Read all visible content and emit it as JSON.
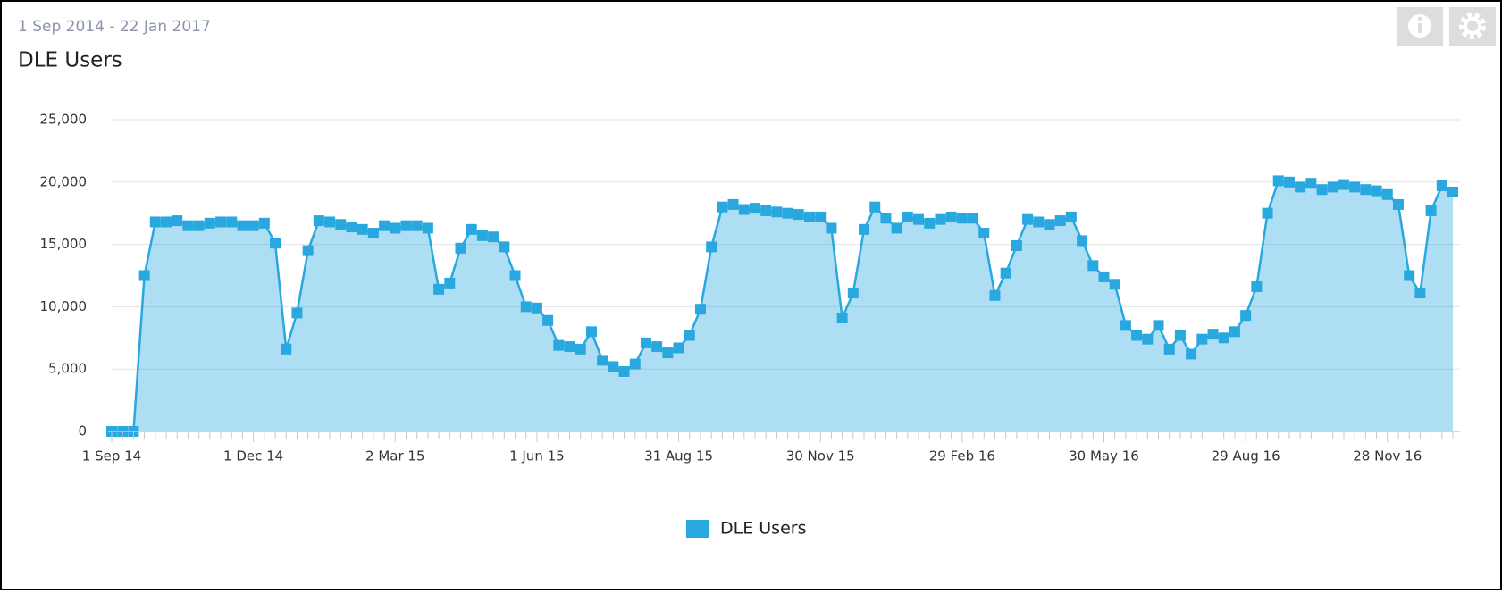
{
  "chart_data": {
    "type": "area",
    "date_range": "1 Sep 2014 - 22 Jan 2017",
    "title": "DLE Users",
    "categories": [
      "1 Sep 14",
      null,
      null,
      null,
      null,
      null,
      null,
      null,
      null,
      null,
      null,
      null,
      null,
      "1 Dec 14",
      null,
      null,
      null,
      null,
      null,
      null,
      null,
      null,
      null,
      null,
      null,
      null,
      "2 Mar 15",
      null,
      null,
      null,
      null,
      null,
      null,
      null,
      null,
      null,
      null,
      null,
      null,
      "1 Jun 15",
      null,
      null,
      null,
      null,
      null,
      null,
      null,
      null,
      null,
      null,
      null,
      null,
      "31 Aug 15",
      null,
      null,
      null,
      null,
      null,
      null,
      null,
      null,
      null,
      null,
      null,
      null,
      "30 Nov 15",
      null,
      null,
      null,
      null,
      null,
      null,
      null,
      null,
      null,
      null,
      null,
      null,
      "29 Feb 16",
      null,
      null,
      null,
      null,
      null,
      null,
      null,
      null,
      null,
      null,
      null,
      null,
      "30 May 16",
      null,
      null,
      null,
      null,
      null,
      null,
      null,
      null,
      null,
      null,
      null,
      null,
      "29 Aug 16",
      null,
      null,
      null,
      null,
      null,
      null,
      null,
      null,
      null,
      null,
      null,
      null,
      "28 Nov 16",
      null,
      null,
      null,
      null,
      null,
      null
    ],
    "series": [
      {
        "name": "DLE Users",
        "color": "#29a8e0",
        "values": [
          0,
          0,
          0,
          12500,
          16800,
          16800,
          16900,
          16500,
          16500,
          16700,
          16800,
          16800,
          16500,
          16500,
          16700,
          15100,
          6600,
          9500,
          14500,
          16900,
          16800,
          16600,
          16400,
          16200,
          15900,
          16500,
          16300,
          16500,
          16500,
          16300,
          11400,
          11900,
          14700,
          16200,
          15700,
          15600,
          14800,
          12500,
          10000,
          9900,
          8900,
          6900,
          6800,
          6600,
          8000,
          5700,
          5200,
          4800,
          5400,
          7100,
          6800,
          6300,
          6700,
          7700,
          9800,
          14800,
          18000,
          18200,
          17800,
          17900,
          17700,
          17600,
          17500,
          17400,
          17200,
          17200,
          16300,
          9100,
          11100,
          16200,
          18000,
          17100,
          16300,
          17200,
          17000,
          16700,
          17000,
          17200,
          17100,
          17100,
          15900,
          10900,
          12700,
          14900,
          17000,
          16800,
          16600,
          16900,
          17200,
          15300,
          13300,
          12400,
          11800,
          8500,
          7700,
          7400,
          8500,
          6600,
          7700,
          6200,
          7400,
          7800,
          7500,
          8000,
          9300,
          11600,
          17500,
          20100,
          20000,
          19600,
          19900,
          19400,
          19600,
          19800,
          19600,
          19400,
          19300,
          19000,
          18200,
          12500,
          11100,
          17700,
          19700,
          19200
        ]
      }
    ],
    "ylim": [
      0,
      25000
    ],
    "yticks": [
      0,
      {
        "value": 5000,
        "label": "5,000"
      },
      {
        "value": 10000,
        "label": "10,000"
      },
      {
        "value": 15000,
        "label": "15,000"
      },
      {
        "value": 20000,
        "label": "20,000"
      },
      {
        "value": 25000,
        "label": "25,000"
      }
    ],
    "grid": true,
    "legend": "bottom"
  }
}
